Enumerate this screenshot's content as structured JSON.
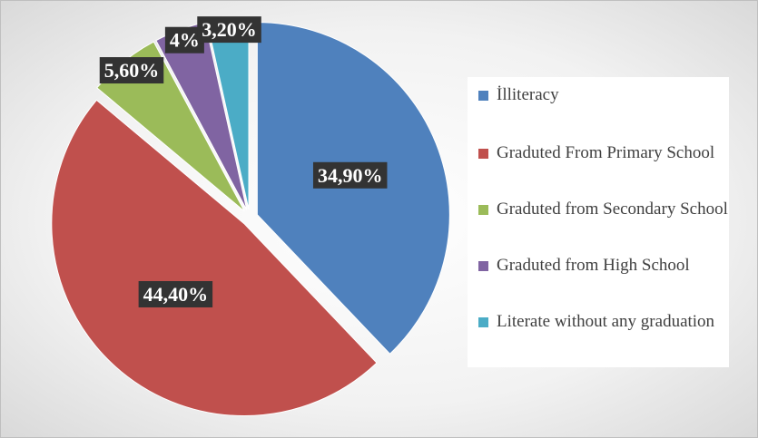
{
  "chart_data": {
    "type": "pie",
    "categories": [
      "İlliteracy",
      "Graduted From Primary School",
      "Graduted from Secondary School",
      "Graduted from High School",
      "Literate without any graduation"
    ],
    "values": [
      34.9,
      44.4,
      5.6,
      4,
      3.2
    ],
    "value_labels": [
      "34,90%",
      "44,40%",
      "5,60%",
      "4%",
      "3,20%"
    ],
    "colors": [
      "#4f81bd",
      "#c0504d",
      "#9bbb59",
      "#8064a2",
      "#4bacc6"
    ],
    "legend": "right"
  }
}
